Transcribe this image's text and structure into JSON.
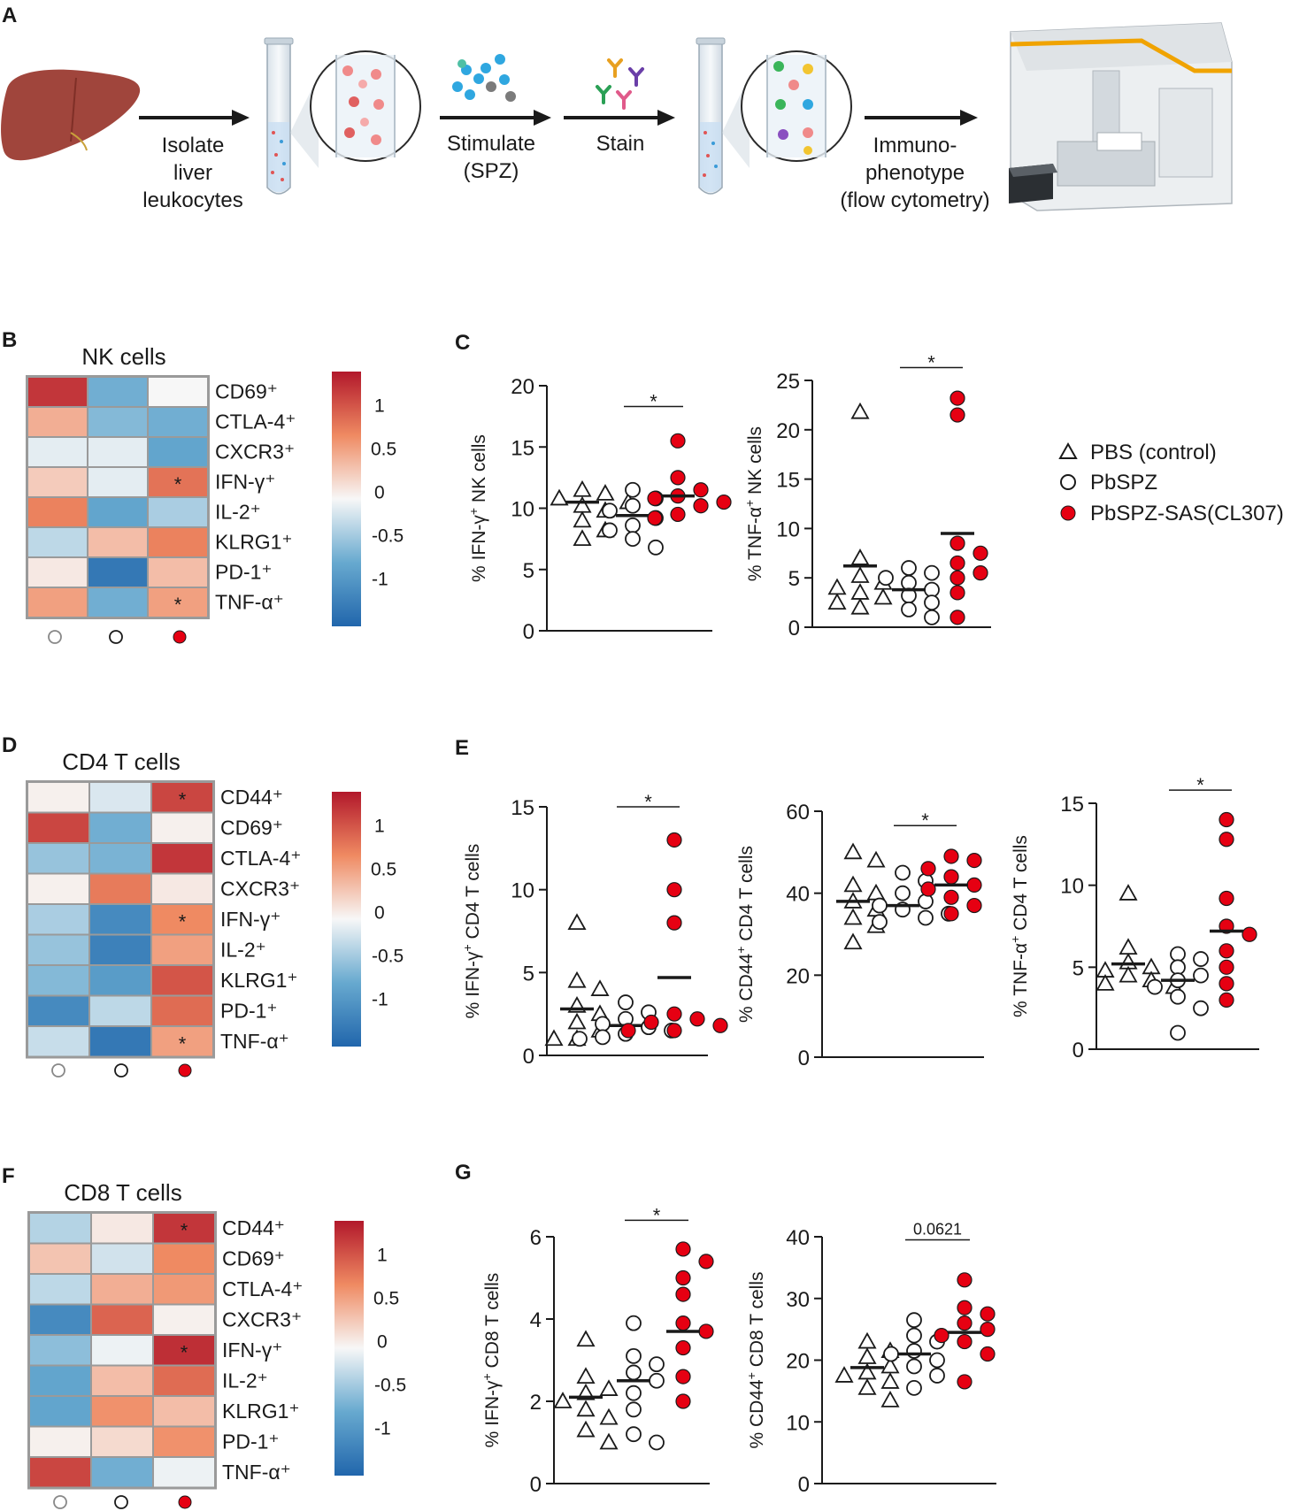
{
  "colors": {
    "heat_high": "#b2182b",
    "heat_mid": "#f7f7f7",
    "heat_low": "#2166ac",
    "red": "#e60012",
    "liver": "#a0453c",
    "arrow": "#1a1a1a"
  },
  "panel_a": {
    "letter": "A",
    "step1": [
      "Isolate",
      "liver",
      "leukocytes"
    ],
    "step2": [
      "Stimulate",
      "(SPZ)"
    ],
    "step3": [
      "Stain"
    ],
    "step4": [
      "Immuno-",
      "phenotype",
      "(flow cytometry)"
    ]
  },
  "legend": {
    "icons": [
      "triangle-icon",
      "circle-open-icon",
      "circle-red-icon"
    ],
    "items": [
      "PBS (control)",
      "PbSPZ",
      "PbSPZ-SAS(CL307)"
    ]
  },
  "heatmaps": [
    {
      "letter": "B",
      "title": "NK cells",
      "rows": [
        "CD69⁺",
        "CTLA-4⁺",
        "CXCR3⁺",
        "IFN-γ⁺",
        "IL-2⁺",
        "KLRG1⁺",
        "PD-1⁺",
        "TNF-α⁺"
      ],
      "values": [
        [
          1.3,
          -0.7,
          0.0
        ],
        [
          0.5,
          -0.6,
          -0.7
        ],
        [
          -0.1,
          -0.1,
          -0.8
        ],
        [
          0.3,
          -0.1,
          0.9
        ],
        [
          0.8,
          -0.8,
          -0.4
        ],
        [
          -0.3,
          0.4,
          0.8
        ],
        [
          0.1,
          -1.3,
          0.4
        ],
        [
          0.6,
          -0.7,
          0.6
        ]
      ],
      "stars": [
        [
          3,
          2
        ],
        [
          7,
          2
        ]
      ],
      "scale_ticks": [
        "1",
        "0.5",
        "0",
        "-0.5",
        "-1"
      ]
    },
    {
      "letter": "D",
      "title": "CD4 T cells",
      "rows": [
        "CD44⁺",
        "CD69⁺",
        "CTLA-4⁺",
        "CXCR3⁺",
        "IFN-γ⁺",
        "IL-2⁺",
        "KLRG1⁺",
        "PD-1⁺",
        "TNF-α⁺"
      ],
      "values": [
        [
          0.05,
          -0.15,
          1.2
        ],
        [
          1.2,
          -0.7,
          0.05
        ],
        [
          -0.5,
          -0.65,
          1.3
        ],
        [
          0.05,
          0.85,
          0.1
        ],
        [
          -0.4,
          -1.1,
          0.75
        ],
        [
          -0.5,
          -1.2,
          0.6
        ],
        [
          -0.6,
          -0.9,
          1.1
        ],
        [
          -1.1,
          -0.3,
          0.95
        ],
        [
          -0.25,
          -1.3,
          0.6
        ]
      ],
      "stars": [
        [
          0,
          2
        ],
        [
          4,
          2
        ],
        [
          8,
          2
        ]
      ],
      "scale_ticks": [
        "1",
        "0.5",
        "0",
        "-0.5",
        "-1"
      ]
    },
    {
      "letter": "F",
      "title": "CD8 T cells",
      "rows": [
        "CD44⁺",
        "CD69⁺",
        "CTLA-4⁺",
        "CXCR3⁺",
        "IFN-γ⁺",
        "IL-2⁺",
        "KLRG1⁺",
        "PD-1⁺",
        "TNF-α⁺"
      ],
      "values": [
        [
          -0.35,
          0.1,
          1.3
        ],
        [
          0.35,
          -0.2,
          0.75
        ],
        [
          -0.3,
          0.5,
          0.65
        ],
        [
          -1.1,
          1.0,
          0.05
        ],
        [
          -0.55,
          -0.05,
          1.35
        ],
        [
          -0.8,
          0.4,
          0.95
        ],
        [
          -0.8,
          0.7,
          0.4
        ],
        [
          0.05,
          0.2,
          0.7
        ],
        [
          1.2,
          -0.7,
          -0.05
        ]
      ],
      "stars": [
        [
          0,
          2
        ],
        [
          4,
          2
        ]
      ],
      "scale_ticks": [
        "1",
        "0.5",
        "0",
        "-0.5",
        "-1"
      ]
    }
  ],
  "scatter_letters": {
    "C": "C",
    "E": "E",
    "G": "G"
  },
  "chart_data": [
    {
      "type": "scatter",
      "panel": "C",
      "ylabel_pre": "% IFN-γ",
      "ylabel_post": " NK cells",
      "sup": "+",
      "ylim": [
        0,
        20
      ],
      "yticks": [
        0,
        5,
        10,
        15,
        20
      ],
      "groups": [
        {
          "name": "PBS (control)",
          "marker": "triangle",
          "mean": 10.5,
          "values": [
            11.5,
            11.2,
            10.8,
            10.5,
            10.2,
            9.8,
            9.0,
            8.2,
            7.5
          ]
        },
        {
          "name": "PbSPZ",
          "marker": "open-circle",
          "mean": 9.4,
          "values": [
            11.5,
            10.8,
            10.2,
            9.8,
            9.2,
            8.6,
            8.2,
            7.5,
            6.8
          ]
        },
        {
          "name": "PbSPZ-SAS(CL307)",
          "marker": "red-circle",
          "mean": 11.0,
          "values": [
            15.5,
            12.5,
            11.5,
            11.0,
            10.8,
            10.5,
            10.2,
            9.5,
            9.2
          ]
        }
      ],
      "sig": {
        "label": "*",
        "from": 1,
        "to": 2,
        "y": 18.3
      }
    },
    {
      "type": "scatter",
      "panel": "C",
      "ylabel_pre": "% TNF-α",
      "ylabel_post": " NK cells",
      "sup": "+",
      "ylim": [
        0,
        25
      ],
      "yticks": [
        0,
        5,
        10,
        15,
        20,
        25
      ],
      "groups": [
        {
          "name": "PBS (control)",
          "marker": "triangle",
          "mean": 6.2,
          "values": [
            21.8,
            7.0,
            5.2,
            4.5,
            4.0,
            3.5,
            3.0,
            2.5,
            2.0
          ]
        },
        {
          "name": "PbSPZ",
          "marker": "open-circle",
          "mean": 3.8,
          "values": [
            6.0,
            5.5,
            5.0,
            4.5,
            3.8,
            3.2,
            2.5,
            1.8,
            1.0
          ]
        },
        {
          "name": "PbSPZ-SAS(CL307)",
          "marker": "red-circle",
          "mean": 9.5,
          "values": [
            23.2,
            21.5,
            8.5,
            7.5,
            6.5,
            5.5,
            5.0,
            3.5,
            1.0
          ]
        }
      ],
      "sig": {
        "label": "*",
        "from": 1,
        "to": 2,
        "y": 26.3
      }
    },
    {
      "type": "scatter",
      "panel": "E",
      "ylabel_pre": "% IFN-γ",
      "ylabel_post": " CD4 T cells",
      "sup": "+",
      "ylim": [
        0,
        15
      ],
      "yticks": [
        0,
        5,
        10,
        15
      ],
      "groups": [
        {
          "name": "PBS (control)",
          "marker": "triangle",
          "mean": 2.8,
          "values": [
            8.0,
            4.5,
            4.0,
            3.0,
            2.5,
            2.0,
            1.5,
            1.0,
            1.0
          ]
        },
        {
          "name": "PbSPZ",
          "marker": "open-circle",
          "mean": 1.8,
          "values": [
            3.2,
            2.6,
            2.2,
            1.9,
            1.7,
            1.5,
            1.3,
            1.1,
            1.0
          ]
        },
        {
          "name": "PbSPZ-SAS(CL307)",
          "marker": "red-circle",
          "mean": 4.7,
          "values": [
            13.0,
            10.0,
            8.0,
            2.5,
            2.2,
            2.0,
            1.8,
            1.5,
            1.5
          ]
        }
      ],
      "sig": {
        "label": "*",
        "from": 1,
        "to": 2,
        "y": 15.0
      }
    },
    {
      "type": "scatter",
      "panel": "E",
      "ylabel_pre": "% CD44",
      "ylabel_post": " CD4 T cells",
      "sup": "+",
      "ylim": [
        0,
        60
      ],
      "yticks": [
        0,
        20,
        40,
        60
      ],
      "groups": [
        {
          "name": "PBS (control)",
          "marker": "triangle",
          "mean": 38,
          "values": [
            50,
            48,
            42,
            40,
            38,
            36,
            34,
            32,
            28
          ]
        },
        {
          "name": "PbSPZ",
          "marker": "open-circle",
          "mean": 37,
          "values": [
            45,
            43,
            40,
            38,
            37,
            36,
            35,
            34,
            33
          ]
        },
        {
          "name": "PbSPZ-SAS(CL307)",
          "marker": "red-circle",
          "mean": 42,
          "values": [
            49,
            48,
            46,
            44,
            42,
            41,
            39,
            37,
            35
          ]
        }
      ],
      "sig": {
        "label": "*",
        "from": 1,
        "to": 2,
        "y": 56.5
      }
    },
    {
      "type": "scatter",
      "panel": "E",
      "ylabel_pre": "% TNF-α",
      "ylabel_post": " CD4 T cells",
      "sup": "+",
      "ylim": [
        0,
        15
      ],
      "yticks": [
        0,
        5,
        10,
        15
      ],
      "groups": [
        {
          "name": "PBS (control)",
          "marker": "triangle",
          "mean": 5.2,
          "values": [
            9.5,
            6.2,
            5.3,
            5.0,
            4.8,
            4.5,
            4.2,
            4.0,
            3.8
          ]
        },
        {
          "name": "PbSPZ",
          "marker": "open-circle",
          "mean": 4.2,
          "values": [
            5.8,
            5.5,
            5.0,
            4.5,
            4.2,
            3.8,
            3.2,
            2.5,
            1.0
          ]
        },
        {
          "name": "PbSPZ-SAS(CL307)",
          "marker": "red-circle",
          "mean": 7.2,
          "values": [
            14.0,
            12.8,
            9.2,
            7.5,
            7.0,
            6.0,
            5.0,
            4.0,
            3.0
          ]
        }
      ],
      "sig": {
        "label": "*",
        "from": 1,
        "to": 2,
        "y": 15.8
      }
    },
    {
      "type": "scatter",
      "panel": "G",
      "ylabel_pre": "% IFN-γ",
      "ylabel_post": " CD8 T cells",
      "sup": "+",
      "ylim": [
        0,
        6
      ],
      "yticks": [
        0,
        2,
        4,
        6
      ],
      "groups": [
        {
          "name": "PBS (control)",
          "marker": "triangle",
          "mean": 2.1,
          "values": [
            3.5,
            2.6,
            2.3,
            2.2,
            2.0,
            1.8,
            1.6,
            1.3,
            1.0
          ]
        },
        {
          "name": "PbSPZ",
          "marker": "open-circle",
          "mean": 2.5,
          "values": [
            3.9,
            3.1,
            2.9,
            2.7,
            2.5,
            2.2,
            1.8,
            1.2,
            1.0
          ]
        },
        {
          "name": "PbSPZ-SAS(CL307)",
          "marker": "red-circle",
          "mean": 3.7,
          "values": [
            5.7,
            5.4,
            5.0,
            4.6,
            3.9,
            3.7,
            3.3,
            2.6,
            2.0
          ]
        }
      ],
      "sig": {
        "label": "*",
        "from": 1,
        "to": 2,
        "y": 6.4
      }
    },
    {
      "type": "scatter",
      "panel": "G",
      "ylabel_pre": "% CD44",
      "ylabel_post": " CD8 T cells",
      "sup": "+",
      "ylim": [
        0,
        40
      ],
      "yticks": [
        0,
        10,
        20,
        30,
        40
      ],
      "groups": [
        {
          "name": "PBS (control)",
          "marker": "triangle",
          "mean": 18.8,
          "values": [
            23,
            21.5,
            20.5,
            19,
            18,
            17.5,
            16.5,
            15.5,
            13.5
          ]
        },
        {
          "name": "PbSPZ",
          "marker": "open-circle",
          "mean": 21,
          "values": [
            26.5,
            24,
            23,
            21.5,
            21,
            20,
            19,
            17.5,
            15.5
          ]
        },
        {
          "name": "PbSPZ-SAS(CL307)",
          "marker": "red-circle",
          "mean": 24.5,
          "values": [
            33,
            28.5,
            27.5,
            26,
            25,
            24,
            23,
            21,
            16.5
          ]
        }
      ],
      "sig": {
        "label": "0.0621",
        "from": 1,
        "to": 2,
        "y": 39.5
      }
    }
  ]
}
